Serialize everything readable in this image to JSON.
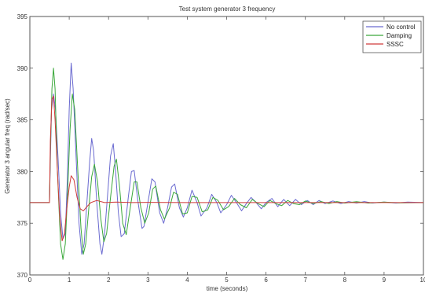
{
  "chart_data": {
    "type": "line",
    "title": "Test system generator 3 frequency",
    "xlabel": "time (seconds)",
    "ylabel": "Generator 3 angular freq (rad/sec)",
    "xlim": [
      0,
      10
    ],
    "ylim": [
      370,
      395
    ],
    "xticks": [
      0,
      1,
      2,
      3,
      4,
      5,
      6,
      7,
      8,
      9,
      10
    ],
    "yticks": [
      370,
      375,
      380,
      385,
      390,
      395
    ],
    "grid": false,
    "legend_position": "top-right",
    "series": [
      {
        "name": "No control",
        "color": "#6a6ad0",
        "points": [
          [
            0,
            377
          ],
          [
            0.5,
            377
          ],
          [
            0.52,
            381
          ],
          [
            0.55,
            386
          ],
          [
            0.6,
            387.5
          ],
          [
            0.65,
            386
          ],
          [
            0.72,
            381
          ],
          [
            0.78,
            376
          ],
          [
            0.84,
            373.5
          ],
          [
            0.9,
            374
          ],
          [
            0.95,
            379
          ],
          [
            1.0,
            386
          ],
          [
            1.05,
            390.5
          ],
          [
            1.1,
            388
          ],
          [
            1.18,
            381
          ],
          [
            1.25,
            375
          ],
          [
            1.32,
            372
          ],
          [
            1.38,
            373
          ],
          [
            1.45,
            377
          ],
          [
            1.52,
            381
          ],
          [
            1.57,
            383.2
          ],
          [
            1.62,
            382
          ],
          [
            1.7,
            377
          ],
          [
            1.78,
            373
          ],
          [
            1.83,
            372
          ],
          [
            1.9,
            374
          ],
          [
            1.98,
            378
          ],
          [
            2.05,
            381.5
          ],
          [
            2.12,
            382.7
          ],
          [
            2.18,
            380
          ],
          [
            2.25,
            376
          ],
          [
            2.32,
            373.7
          ],
          [
            2.4,
            374
          ],
          [
            2.5,
            377.5
          ],
          [
            2.58,
            380
          ],
          [
            2.65,
            380.1
          ],
          [
            2.75,
            377
          ],
          [
            2.85,
            374.5
          ],
          [
            2.9,
            374.7
          ],
          [
            3.0,
            377
          ],
          [
            3.1,
            379.3
          ],
          [
            3.18,
            379
          ],
          [
            3.3,
            376
          ],
          [
            3.4,
            375
          ],
          [
            3.5,
            376.5
          ],
          [
            3.6,
            378.5
          ],
          [
            3.68,
            378.8
          ],
          [
            3.8,
            376.5
          ],
          [
            3.9,
            375.6
          ],
          [
            4.0,
            376.5
          ],
          [
            4.12,
            378.2
          ],
          [
            4.25,
            377
          ],
          [
            4.35,
            375.7
          ],
          [
            4.5,
            376.5
          ],
          [
            4.62,
            377.8
          ],
          [
            4.75,
            377
          ],
          [
            4.85,
            376
          ],
          [
            5.0,
            376.8
          ],
          [
            5.12,
            377.7
          ],
          [
            5.25,
            377
          ],
          [
            5.38,
            376.2
          ],
          [
            5.5,
            376.9
          ],
          [
            5.62,
            377.5
          ],
          [
            5.75,
            377
          ],
          [
            5.88,
            376.4
          ],
          [
            6.0,
            377
          ],
          [
            6.15,
            377.4
          ],
          [
            6.3,
            376.6
          ],
          [
            6.45,
            377.3
          ],
          [
            6.6,
            376.7
          ],
          [
            6.75,
            377.3
          ],
          [
            6.9,
            376.8
          ],
          [
            7.05,
            377.2
          ],
          [
            7.2,
            376.8
          ],
          [
            7.35,
            377.2
          ],
          [
            7.5,
            376.9
          ],
          [
            7.7,
            377.15
          ],
          [
            7.9,
            376.9
          ],
          [
            8.1,
            377.1
          ],
          [
            8.3,
            376.95
          ],
          [
            8.5,
            377.1
          ],
          [
            8.7,
            376.95
          ],
          [
            9.0,
            377.05
          ],
          [
            9.3,
            376.95
          ],
          [
            9.6,
            377.05
          ],
          [
            10.0,
            377
          ]
        ]
      },
      {
        "name": "Damping",
        "color": "#3aa83a",
        "points": [
          [
            0,
            377
          ],
          [
            0.5,
            377
          ],
          [
            0.52,
            382
          ],
          [
            0.56,
            388
          ],
          [
            0.6,
            390
          ],
          [
            0.64,
            388
          ],
          [
            0.7,
            380
          ],
          [
            0.78,
            373
          ],
          [
            0.84,
            371.5
          ],
          [
            0.9,
            373
          ],
          [
            0.96,
            378
          ],
          [
            1.02,
            384
          ],
          [
            1.08,
            387.5
          ],
          [
            1.14,
            386
          ],
          [
            1.22,
            380
          ],
          [
            1.3,
            374.5
          ],
          [
            1.36,
            372
          ],
          [
            1.42,
            373
          ],
          [
            1.5,
            376.5
          ],
          [
            1.57,
            379.5
          ],
          [
            1.64,
            380.7
          ],
          [
            1.72,
            379
          ],
          [
            1.8,
            375.5
          ],
          [
            1.88,
            373.2
          ],
          [
            1.95,
            374
          ],
          [
            2.05,
            377.5
          ],
          [
            2.14,
            380.5
          ],
          [
            2.2,
            381.2
          ],
          [
            2.28,
            378.5
          ],
          [
            2.36,
            375
          ],
          [
            2.45,
            373.9
          ],
          [
            2.55,
            376.5
          ],
          [
            2.65,
            379
          ],
          [
            2.72,
            379
          ],
          [
            2.82,
            376.5
          ],
          [
            2.92,
            375
          ],
          [
            3.02,
            376
          ],
          [
            3.12,
            378.3
          ],
          [
            3.2,
            378.6
          ],
          [
            3.32,
            376.3
          ],
          [
            3.42,
            375.4
          ],
          [
            3.55,
            376.5
          ],
          [
            3.65,
            378
          ],
          [
            3.75,
            377.8
          ],
          [
            3.88,
            375.9
          ],
          [
            4.0,
            376
          ],
          [
            4.12,
            377.6
          ],
          [
            4.25,
            377.5
          ],
          [
            4.38,
            376.1
          ],
          [
            4.52,
            376.3
          ],
          [
            4.65,
            377.5
          ],
          [
            4.78,
            377.2
          ],
          [
            4.92,
            376.3
          ],
          [
            5.05,
            376.6
          ],
          [
            5.2,
            377.4
          ],
          [
            5.35,
            376.8
          ],
          [
            5.5,
            376.5
          ],
          [
            5.65,
            377.3
          ],
          [
            5.8,
            376.9
          ],
          [
            5.95,
            376.6
          ],
          [
            6.1,
            377.2
          ],
          [
            6.25,
            376.9
          ],
          [
            6.4,
            376.7
          ],
          [
            6.55,
            377.2
          ],
          [
            6.7,
            376.9
          ],
          [
            6.85,
            376.8
          ],
          [
            7.0,
            377.15
          ],
          [
            7.2,
            376.9
          ],
          [
            7.4,
            377.1
          ],
          [
            7.6,
            376.9
          ],
          [
            7.8,
            377.1
          ],
          [
            8.0,
            376.95
          ],
          [
            8.3,
            377.08
          ],
          [
            8.6,
            376.95
          ],
          [
            9.0,
            377.05
          ],
          [
            9.4,
            376.97
          ],
          [
            10.0,
            377
          ]
        ]
      },
      {
        "name": "SSSC",
        "color": "#d03a3a",
        "points": [
          [
            0,
            377
          ],
          [
            0.5,
            377
          ],
          [
            0.52,
            383
          ],
          [
            0.56,
            387
          ],
          [
            0.6,
            387.3
          ],
          [
            0.64,
            385
          ],
          [
            0.7,
            380
          ],
          [
            0.76,
            375.5
          ],
          [
            0.82,
            373.3
          ],
          [
            0.88,
            374
          ],
          [
            0.94,
            376.5
          ],
          [
            1.0,
            378.5
          ],
          [
            1.05,
            379.6
          ],
          [
            1.12,
            379.2
          ],
          [
            1.2,
            377.5
          ],
          [
            1.28,
            376.4
          ],
          [
            1.36,
            376.2
          ],
          [
            1.45,
            376.6
          ],
          [
            1.55,
            377
          ],
          [
            1.7,
            377.2
          ],
          [
            1.9,
            377
          ],
          [
            2.2,
            377.05
          ],
          [
            2.6,
            377
          ],
          [
            3.0,
            377.02
          ],
          [
            4.0,
            377
          ],
          [
            5.0,
            377
          ],
          [
            6.0,
            377
          ],
          [
            7.0,
            377
          ],
          [
            8.0,
            377
          ],
          [
            9.0,
            377
          ],
          [
            10.0,
            377
          ]
        ]
      }
    ]
  }
}
